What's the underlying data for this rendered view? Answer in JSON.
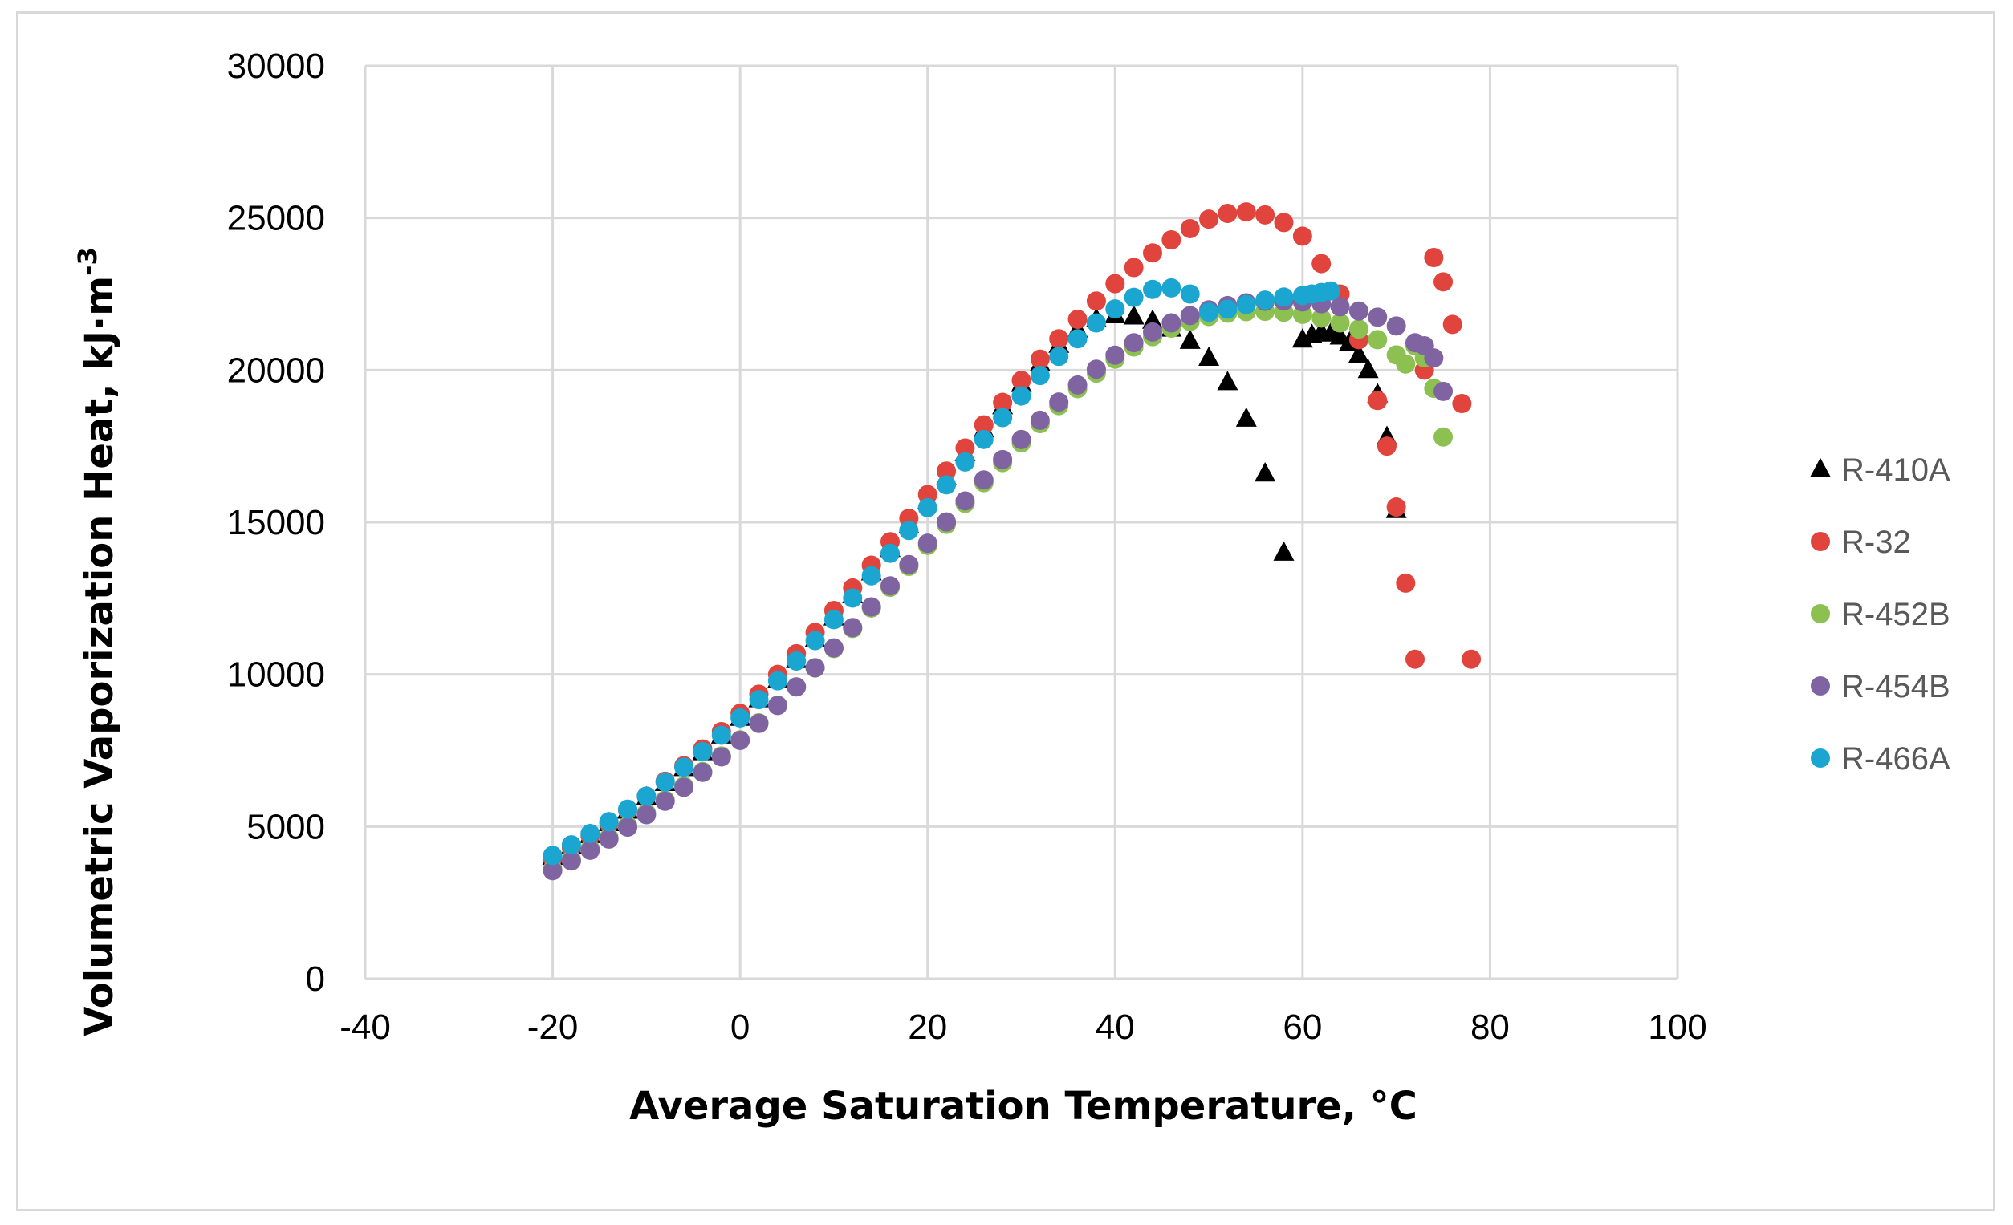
{
  "chart_data": {
    "type": "scatter",
    "title": "",
    "xlabel": "Average Saturation Temperature, °C",
    "ylabel": "Volumetric Vaporization Heat, kJ·m",
    "ylabel_superscript": "-3",
    "xlim": [
      -40,
      100
    ],
    "ylim": [
      0,
      30000
    ],
    "x_ticks": [
      -40,
      -20,
      0,
      20,
      40,
      60,
      80,
      100
    ],
    "y_ticks": [
      0,
      5000,
      10000,
      15000,
      20000,
      25000,
      30000
    ],
    "x_tick_labels": [
      "-40",
      "-20",
      "0",
      "20",
      "40",
      "60",
      "80",
      "100"
    ],
    "y_tick_labels": [
      "0",
      "5000",
      "10000",
      "15000",
      "20000",
      "25000",
      "30000"
    ],
    "grid": true,
    "legend_position": "right",
    "series": [
      {
        "name": "R-410A",
        "marker": "triangle",
        "color": "#000000",
        "x": [
          -20,
          -18,
          -16,
          -14,
          -12,
          -10,
          -8,
          -6,
          -4,
          -2,
          0,
          2,
          4,
          6,
          8,
          10,
          12,
          14,
          16,
          18,
          20,
          22,
          24,
          26,
          28,
          30,
          32,
          34,
          36,
          38,
          40,
          42,
          44,
          46,
          48,
          50,
          52,
          54,
          56,
          58,
          60,
          61,
          62,
          63,
          64,
          65,
          66,
          67,
          68,
          69,
          70
        ],
        "y": [
          4000,
          4350,
          4720,
          5110,
          5520,
          5960,
          6430,
          6920,
          7440,
          7990,
          8570,
          9180,
          9810,
          10470,
          11160,
          11870,
          12600,
          13350,
          14120,
          14900,
          15690,
          16480,
          17270,
          18050,
          18810,
          19540,
          20220,
          20830,
          21330,
          21670,
          21800,
          21760,
          21620,
          21360,
          20960,
          20400,
          19600,
          18400,
          16600,
          14000,
          21000,
          21150,
          21250,
          21200,
          21100,
          20900,
          20500,
          20000,
          19200,
          17800,
          15400
        ]
      },
      {
        "name": "R-32",
        "marker": "circle",
        "color": "#e0443c",
        "x": [
          -20,
          -18,
          -16,
          -14,
          -12,
          -10,
          -8,
          -6,
          -4,
          -2,
          0,
          2,
          4,
          6,
          8,
          10,
          12,
          14,
          16,
          18,
          20,
          22,
          24,
          26,
          28,
          30,
          32,
          34,
          36,
          38,
          40,
          42,
          44,
          46,
          48,
          50,
          52,
          54,
          56,
          58,
          60,
          62,
          64,
          66,
          68,
          69,
          70,
          71,
          72,
          73,
          74,
          75,
          76,
          77,
          78
        ],
        "y": [
          3950,
          4310,
          4700,
          5110,
          5540,
          6000,
          6490,
          7000,
          7550,
          8120,
          8720,
          9350,
          10000,
          10680,
          11380,
          12100,
          12840,
          13590,
          14360,
          15130,
          15910,
          16680,
          17440,
          18200,
          18940,
          19660,
          20360,
          21030,
          21670,
          22270,
          22840,
          23370,
          23850,
          24280,
          24650,
          24960,
          25150,
          25200,
          25100,
          24850,
          24400,
          23500,
          22500,
          21000,
          19000,
          17500,
          15500,
          13000,
          10500,
          20000,
          23700,
          22900,
          21500,
          18900,
          10500
        ]
      },
      {
        "name": "R-452B",
        "marker": "circle",
        "color": "#8cc152",
        "x": [
          -20,
          -18,
          -16,
          -14,
          -12,
          -10,
          -8,
          -6,
          -4,
          -2,
          0,
          2,
          4,
          6,
          8,
          10,
          12,
          14,
          16,
          18,
          20,
          22,
          24,
          26,
          28,
          30,
          32,
          34,
          36,
          38,
          40,
          42,
          44,
          46,
          48,
          50,
          52,
          54,
          56,
          58,
          60,
          62,
          64,
          66,
          68,
          70,
          71,
          72,
          73,
          74,
          75
        ],
        "y": [
          3600,
          3920,
          4270,
          4640,
          5030,
          5440,
          5870,
          6330,
          6810,
          7320,
          7850,
          8410,
          8990,
          9590,
          10210,
          10850,
          11510,
          12180,
          12860,
          13550,
          14240,
          14930,
          15620,
          16300,
          16960,
          17610,
          18240,
          18830,
          19390,
          19900,
          20360,
          20760,
          21100,
          21380,
          21600,
          21760,
          21870,
          21920,
          21930,
          21900,
          21830,
          21710,
          21550,
          21350,
          21000,
          20500,
          20200,
          20800,
          20400,
          19400,
          17800
        ]
      },
      {
        "name": "R-454B",
        "marker": "circle",
        "color": "#8064a2",
        "x": [
          -20,
          -18,
          -16,
          -14,
          -12,
          -10,
          -8,
          -6,
          -4,
          -2,
          0,
          2,
          4,
          6,
          8,
          10,
          12,
          14,
          16,
          18,
          20,
          22,
          24,
          26,
          28,
          30,
          32,
          34,
          36,
          38,
          40,
          42,
          44,
          46,
          48,
          50,
          52,
          54,
          56,
          58,
          60,
          62,
          64,
          66,
          68,
          70,
          72,
          73,
          74,
          75
        ],
        "y": [
          3550,
          3870,
          4220,
          4590,
          4980,
          5390,
          5830,
          6290,
          6780,
          7290,
          7830,
          8390,
          8980,
          9590,
          10220,
          10870,
          11540,
          12220,
          12910,
          13610,
          14310,
          15010,
          15700,
          16390,
          17060,
          17720,
          18350,
          18950,
          19510,
          20030,
          20490,
          20900,
          21250,
          21550,
          21790,
          21980,
          22120,
          22210,
          22260,
          22270,
          22240,
          22180,
          22080,
          21940,
          21740,
          21450,
          20900,
          20800,
          20400,
          19300
        ]
      },
      {
        "name": "R-466A",
        "marker": "circle",
        "color": "#1aa6d1",
        "x": [
          -20,
          -18,
          -16,
          -14,
          -12,
          -10,
          -8,
          -6,
          -4,
          -2,
          0,
          2,
          4,
          6,
          8,
          10,
          12,
          14,
          16,
          18,
          20,
          22,
          24,
          26,
          28,
          30,
          32,
          34,
          36,
          38,
          40,
          42,
          44,
          46,
          48,
          50,
          52,
          54,
          56,
          58,
          60,
          61,
          62,
          63
        ],
        "y": [
          4050,
          4400,
          4770,
          5160,
          5570,
          6000,
          6460,
          6950,
          7460,
          8000,
          8570,
          9170,
          9790,
          10440,
          11110,
          11800,
          12510,
          13240,
          13980,
          14730,
          15480,
          16230,
          16980,
          17720,
          18440,
          19150,
          19820,
          20450,
          21030,
          21550,
          22010,
          22390,
          22650,
          22700,
          22500,
          21900,
          22000,
          22150,
          22300,
          22400,
          22450,
          22500,
          22550,
          22600
        ]
      }
    ]
  }
}
